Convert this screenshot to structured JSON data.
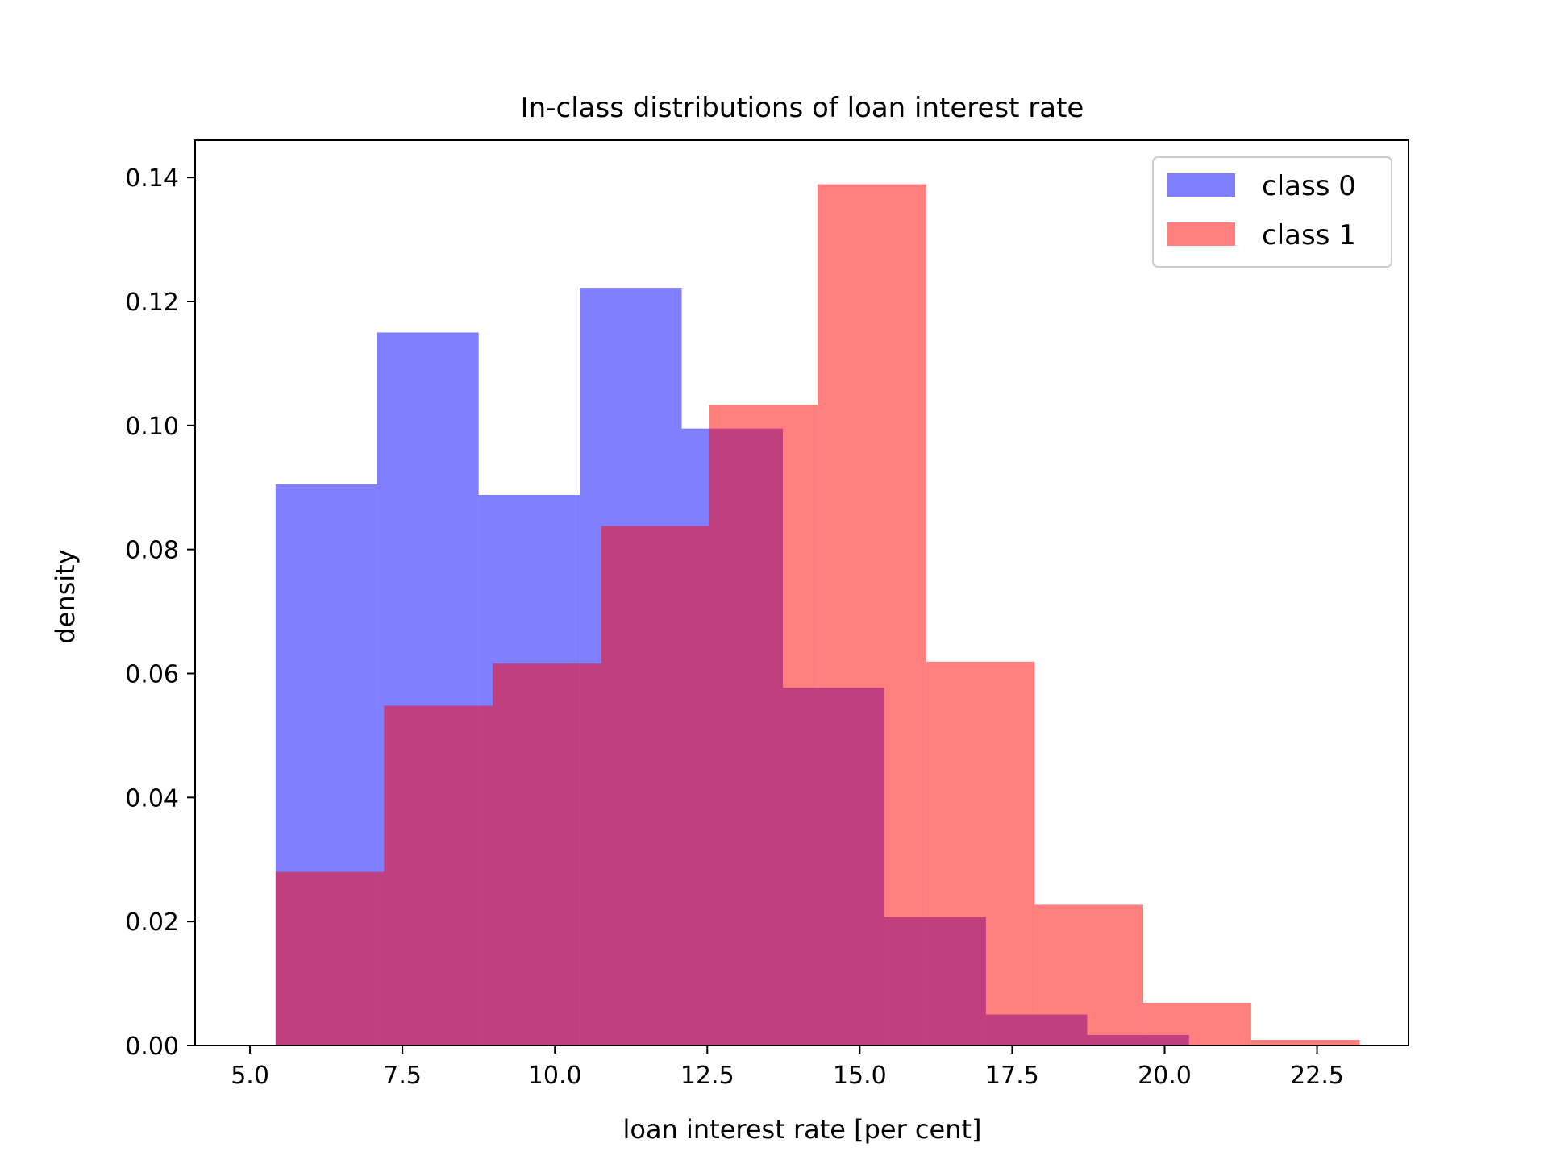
{
  "chart_data": {
    "type": "bar",
    "title": "In-class distributions of loan interest rate",
    "xlabel": "loan interest rate [per cent]",
    "ylabel": "density",
    "xlim": [
      4.1,
      24.0
    ],
    "ylim": [
      0.0,
      0.146
    ],
    "xticks": [
      5.0,
      7.5,
      10.0,
      12.5,
      15.0,
      17.5,
      20.0,
      22.5
    ],
    "xtick_labels": [
      "5.0",
      "7.5",
      "10.0",
      "12.5",
      "15.0",
      "17.5",
      "20.0",
      "22.5"
    ],
    "yticks": [
      0.0,
      0.02,
      0.04,
      0.06,
      0.08,
      0.1,
      0.12,
      0.14
    ],
    "ytick_labels": [
      "0.00",
      "0.02",
      "0.04",
      "0.06",
      "0.08",
      "0.10",
      "0.12",
      "0.14"
    ],
    "grid": false,
    "legend_position": "top-right",
    "series": [
      {
        "name": "class 0",
        "color": "#0000ff",
        "opacity": 0.5,
        "bin_edges": [
          5.42,
          7.08,
          8.75,
          10.41,
          12.08,
          13.74,
          15.4,
          17.07,
          18.73,
          20.4
        ],
        "values": [
          0.0905,
          0.115,
          0.0888,
          0.1222,
          0.0995,
          0.0577,
          0.0207,
          0.005,
          0.0017
        ]
      },
      {
        "name": "class 1",
        "color": "#ff0000",
        "opacity": 0.5,
        "bin_edges": [
          5.42,
          7.2,
          8.98,
          10.76,
          12.53,
          14.31,
          16.09,
          17.87,
          19.65,
          21.42,
          23.2
        ],
        "values": [
          0.028,
          0.0548,
          0.0616,
          0.0838,
          0.1033,
          0.1389,
          0.0619,
          0.0227,
          0.0069,
          0.0009
        ]
      }
    ]
  }
}
